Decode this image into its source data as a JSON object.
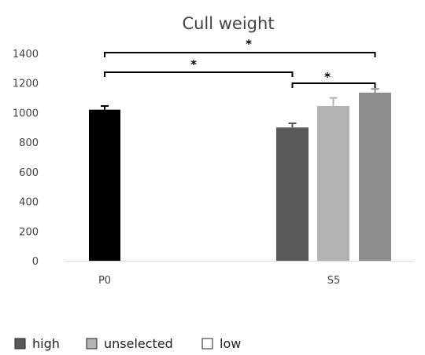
{
  "chart_data": {
    "type": "bar",
    "title": "Cull weight",
    "xlabel": "",
    "ylabel": "",
    "ylim": [
      0,
      1400
    ],
    "yticks": [
      0,
      200,
      400,
      600,
      800,
      1000,
      1200,
      1400
    ],
    "grid": false,
    "legend_position": "bottom-left",
    "categories": [
      "P0",
      "S5"
    ],
    "bars": [
      {
        "category": "P0",
        "series": "P0",
        "value": 1020,
        "error": 25,
        "color": "#000000"
      },
      {
        "category": "S5",
        "series": "high",
        "value": 900,
        "error": 28,
        "color": "#595959"
      },
      {
        "category": "S5",
        "series": "unselected",
        "value": 1045,
        "error": 55,
        "color": "#b3b3b3"
      },
      {
        "category": "S5",
        "series": "low",
        "value": 1135,
        "error": 25,
        "color": "#8c8c8c"
      }
    ],
    "legend": [
      {
        "name": "high",
        "color": "#595959"
      },
      {
        "name": "unselected",
        "color": "#b3b3b3"
      },
      {
        "name": "low",
        "color": "#ffffff"
      }
    ],
    "significance": [
      {
        "from": "P0",
        "to": "S5 low",
        "label": "*"
      },
      {
        "from": "P0",
        "to": "S5 high",
        "label": "*"
      },
      {
        "from": "S5 high",
        "to": "S5 low",
        "label": "*"
      }
    ]
  }
}
